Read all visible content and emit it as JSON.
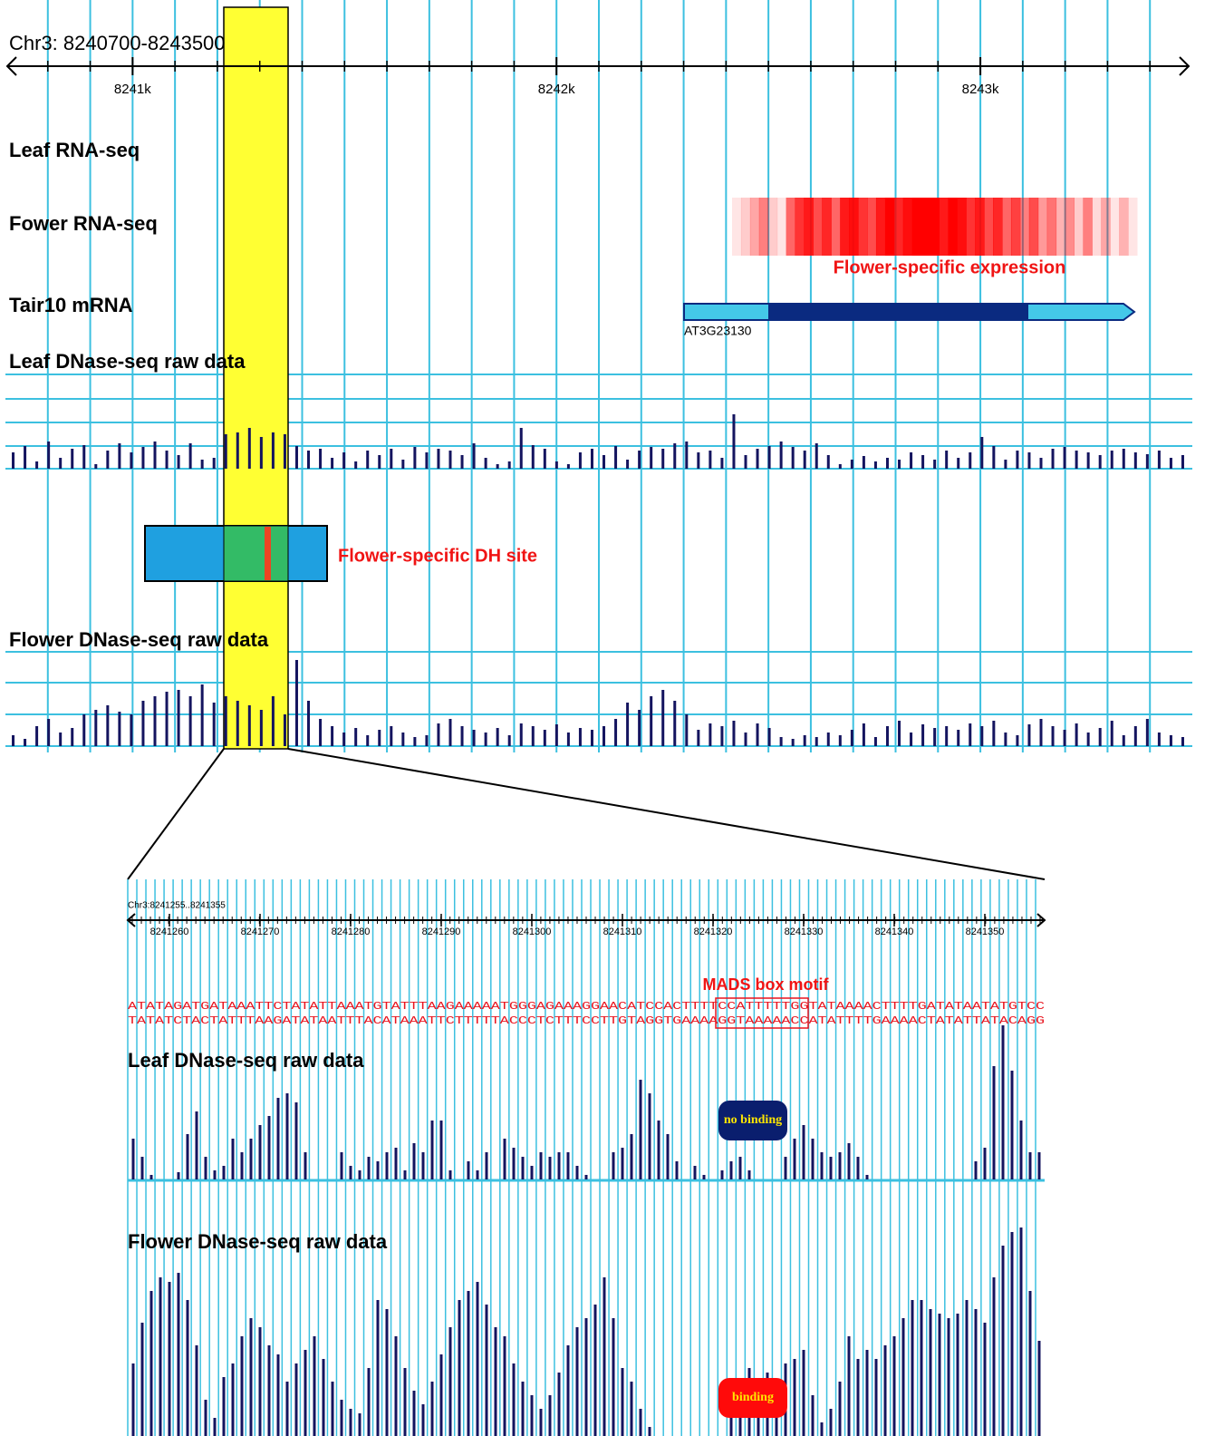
{
  "chart_data": [
    {
      "type": "genome-browser",
      "title": "Chr3: 8240700-8243500",
      "xlim": [
        8240700,
        8243500
      ],
      "xticks": [
        {
          "value": 8241000,
          "label": "8241k"
        },
        {
          "value": 8242000,
          "label": "8242k"
        },
        {
          "value": 8243000,
          "label": "8243k"
        }
      ],
      "leaf_rna_label": "Leaf RNA-seq",
      "flower_rna_label": "Fower RNA-seq",
      "flower_rna_color": "#ff0000",
      "flower_rna_values": [
        0.1,
        0.2,
        0.35,
        0.5,
        0.2,
        0.1,
        0.6,
        0.8,
        0.9,
        0.7,
        0.85,
        0.6,
        0.9,
        0.95,
        0.8,
        0.7,
        0.9,
        1,
        0.85,
        0.95,
        1,
        1,
        1,
        0.9,
        1,
        0.95,
        0.8,
        0.9,
        0.7,
        0.85,
        0.6,
        0.75,
        0.5,
        0.7,
        0.4,
        0.55,
        0.3,
        0.45,
        0.2,
        0.5,
        0.15,
        0.35,
        0.1,
        0.3,
        0.1
      ],
      "flower_rna_annotation": "Flower-specific expression",
      "mrna_label": "Tair10 mRNA",
      "gene_name": "AT3G23130",
      "leaf_dnase_label": "Leaf DNase-seq raw data",
      "leaf_dnase_values": [
        18,
        25,
        8,
        30,
        12,
        22,
        26,
        5,
        20,
        28,
        18,
        24,
        30,
        20,
        15,
        28,
        10,
        12,
        38,
        40,
        45,
        35,
        40,
        38,
        25,
        20,
        22,
        12,
        18,
        8,
        20,
        15,
        22,
        10,
        24,
        18,
        22,
        20,
        15,
        28,
        12,
        5,
        8,
        45,
        26,
        22,
        8,
        5,
        18,
        22,
        15,
        25,
        10,
        20,
        24,
        22,
        28,
        30,
        18,
        20,
        12,
        60,
        15,
        22,
        25,
        30,
        24,
        20,
        28,
        15,
        5,
        10,
        14,
        8,
        12,
        10,
        18,
        15,
        10,
        20,
        12,
        18,
        35,
        25,
        10,
        20,
        18,
        12,
        22,
        24,
        20,
        18,
        15,
        20,
        22,
        18,
        16,
        20,
        12,
        15
      ],
      "dh_site_label": "Flower-specific DH site",
      "flower_dnase_label": "Flower DNase-seq raw data",
      "flower_dnase_values": [
        12,
        8,
        22,
        30,
        15,
        20,
        35,
        40,
        45,
        38,
        35,
        50,
        55,
        60,
        62,
        55,
        68,
        48,
        55,
        50,
        45,
        40,
        55,
        35,
        95,
        50,
        30,
        22,
        15,
        20,
        12,
        18,
        22,
        15,
        10,
        12,
        25,
        30,
        22,
        18,
        15,
        20,
        12,
        25,
        22,
        18,
        24,
        15,
        20,
        18,
        22,
        30,
        48,
        40,
        55,
        62,
        50,
        35,
        18,
        25,
        22,
        28,
        15,
        25,
        20,
        10,
        8,
        12,
        10,
        15,
        12,
        18,
        25,
        10,
        22,
        28,
        15,
        24,
        20,
        22,
        18,
        25,
        22,
        28,
        15,
        12,
        24,
        30,
        22,
        18,
        25,
        15,
        20,
        28,
        12,
        22,
        30,
        15,
        12,
        10
      ],
      "bar_color": "#14145f"
    },
    {
      "type": "sequence-zoom",
      "title": "Chr3:8241255..8241355",
      "xlim": [
        8241255,
        8241355
      ],
      "xticks": [
        8241260,
        8241270,
        8241280,
        8241290,
        8241300,
        8241310,
        8241320,
        8241330,
        8241340,
        8241350
      ],
      "motif_label": "MADS box motif",
      "sequence_top": "ATATAGATGATAAATTCTATATTAAATGTATTTAAGAAAAATGGGAGAAAGGAACATCCACTTTTCCATTTTTGGTATAAAACTTTTGATATAATATGTCC",
      "sequence_bottom": "TATATCTACTATTTAAGATATAATTTACATAAATTCTTTTTACCCTCTTTCCTTGTAGGTGAAAAGGTAAAAACCATATTTTGAAAACTATATTATACAGG",
      "leaf_label": "Leaf DNase-seq raw data",
      "leaf_values": [
        45,
        25,
        5,
        0,
        0,
        8,
        50,
        75,
        25,
        10,
        15,
        45,
        30,
        45,
        60,
        70,
        90,
        95,
        85,
        30,
        0,
        0,
        0,
        30,
        15,
        10,
        25,
        20,
        30,
        35,
        10,
        40,
        30,
        65,
        65,
        10,
        0,
        20,
        10,
        30,
        0,
        45,
        35,
        25,
        15,
        30,
        25,
        30,
        30,
        15,
        5,
        0,
        0,
        30,
        35,
        50,
        110,
        95,
        65,
        50,
        20,
        0,
        15,
        5,
        0,
        10,
        20,
        25,
        10,
        0,
        0,
        0,
        25,
        45,
        60,
        45,
        30,
        25,
        30,
        40,
        25,
        5,
        0,
        0,
        0,
        0,
        0,
        0,
        0,
        0,
        0,
        0,
        0,
        20,
        35,
        125,
        170,
        120,
        65,
        30,
        30
      ],
      "leaf_status": "no binding",
      "flower_label": "Flower DNase-seq raw data",
      "flower_values": [
        80,
        125,
        160,
        175,
        170,
        180,
        150,
        100,
        40,
        20,
        65,
        80,
        110,
        130,
        120,
        100,
        90,
        60,
        80,
        95,
        110,
        85,
        60,
        40,
        30,
        25,
        75,
        150,
        140,
        110,
        75,
        50,
        35,
        60,
        90,
        120,
        150,
        160,
        170,
        145,
        120,
        110,
        80,
        60,
        45,
        30,
        45,
        70,
        100,
        120,
        130,
        145,
        175,
        130,
        75,
        60,
        30,
        10,
        0,
        0,
        0,
        0,
        0,
        0,
        0,
        0,
        20,
        40,
        75,
        60,
        70,
        60,
        80,
        85,
        95,
        45,
        15,
        30,
        60,
        110,
        85,
        95,
        85,
        100,
        110,
        130,
        150,
        150,
        140,
        135,
        130,
        135,
        150,
        140,
        125,
        175,
        210,
        225,
        230,
        160,
        105
      ],
      "flower_status": "binding",
      "bar_color": "#14145f"
    }
  ]
}
